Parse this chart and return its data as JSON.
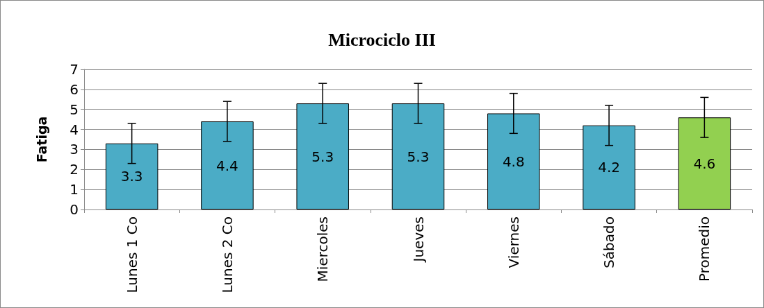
{
  "chart_data": {
    "type": "bar",
    "title": "Microciclo III",
    "ylabel": "Fatiga",
    "categories": [
      "Lunes 1 Co",
      "Lunes 2 Co",
      "Miercoles",
      "Jueves",
      "Viernes",
      "Sábado",
      "Promedio"
    ],
    "values": [
      3.3,
      4.4,
      5.3,
      5.3,
      4.8,
      4.2,
      4.6
    ],
    "colors": [
      "#4bacc6",
      "#4bacc6",
      "#4bacc6",
      "#4bacc6",
      "#4bacc6",
      "#4bacc6",
      "#92d050"
    ],
    "errors": [
      1,
      1,
      1,
      1,
      1,
      1,
      1
    ],
    "ylim": [
      0,
      7
    ],
    "yticks": [
      0,
      1,
      2,
      3,
      4,
      5,
      6,
      7
    ],
    "grid": "y",
    "data_labels": true
  }
}
